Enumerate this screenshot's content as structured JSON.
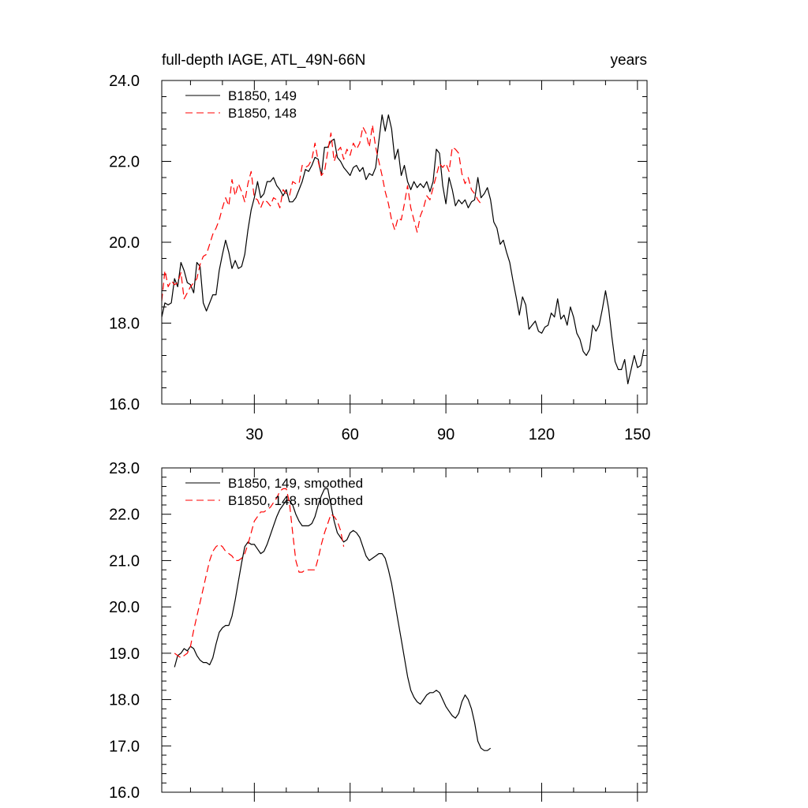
{
  "chart_data": [
    {
      "id": "top",
      "type": "line",
      "title": "full-depth IAGE, ATL_49N-66N",
      "units": "years",
      "xlim": [
        1,
        153
      ],
      "ylim": [
        16,
        24
      ],
      "x_ticks": [
        30,
        60,
        90,
        120,
        150
      ],
      "y_ticks": [
        16,
        18,
        20,
        22,
        24
      ],
      "y_tick_labels": [
        "16.0",
        "18.0",
        "20.0",
        "22.0",
        "24.0"
      ],
      "legend_position": "top-left",
      "series": [
        {
          "name": "B1850, 149",
          "color": "#000000",
          "dash": "solid",
          "x_start": 1,
          "values": [
            18.15,
            18.5,
            18.45,
            18.5,
            19.1,
            18.9,
            19.5,
            19.3,
            19.0,
            18.95,
            18.75,
            19.5,
            19.4,
            18.5,
            18.3,
            18.5,
            18.7,
            18.7,
            19.3,
            19.7,
            20.05,
            19.75,
            19.35,
            19.55,
            19.35,
            19.4,
            19.7,
            20.3,
            20.8,
            21.1,
            21.5,
            21.1,
            21.2,
            21.5,
            21.5,
            21.6,
            21.4,
            21.3,
            21.15,
            21.3,
            21.0,
            21.0,
            21.1,
            21.3,
            21.5,
            21.8,
            21.75,
            21.9,
            22.1,
            22.05,
            21.65,
            22.35,
            22.35,
            22.5,
            22.55,
            22.1,
            22.0,
            21.85,
            21.75,
            21.65,
            21.85,
            21.9,
            21.75,
            21.85,
            21.55,
            21.7,
            21.65,
            21.85,
            22.5,
            23.15,
            22.75,
            23.15,
            22.8,
            22.05,
            22.3,
            21.65,
            21.9,
            21.5,
            21.3,
            21.5,
            21.35,
            21.45,
            21.35,
            21.5,
            21.25,
            21.5,
            22.3,
            22.2,
            21.4,
            20.95,
            21.6,
            21.3,
            20.9,
            21.05,
            20.95,
            21.05,
            20.85,
            21.0,
            21.05,
            21.6,
            21.1,
            21.2,
            21.35,
            21.05,
            20.5,
            20.35,
            19.95,
            20.05,
            19.75,
            19.5,
            19.05,
            18.65,
            18.2,
            18.65,
            18.45,
            17.85,
            17.95,
            18.05,
            17.8,
            17.75,
            17.9,
            17.95,
            18.25,
            18.15,
            18.6,
            18.1,
            18.2,
            17.95,
            18.4,
            18.15,
            17.75,
            17.6,
            17.3,
            17.2,
            17.35,
            17.95,
            17.8,
            17.95,
            18.35,
            18.8,
            18.35,
            17.65,
            17.05,
            16.85,
            16.85,
            17.1,
            16.5,
            16.85,
            17.2,
            16.9,
            16.95,
            17.35
          ]
        },
        {
          "name": "B1850, 148",
          "color": "#ff0000",
          "dash": "dashed",
          "x_start": 1,
          "values": [
            18.55,
            19.3,
            18.9,
            19.05,
            18.95,
            19.0,
            19.25,
            18.6,
            18.75,
            18.9,
            19.0,
            19.1,
            19.45,
            19.65,
            19.7,
            19.95,
            20.2,
            20.35,
            20.55,
            20.85,
            21.1,
            20.9,
            21.55,
            21.15,
            21.45,
            21.25,
            21.0,
            21.45,
            21.75,
            21.1,
            21.05,
            20.85,
            21.05,
            21.0,
            20.9,
            21.1,
            21.05,
            20.85,
            21.3,
            21.2,
            21.15,
            21.5,
            21.45,
            21.45,
            21.9,
            21.85,
            21.9,
            22.05,
            22.45,
            22.0,
            21.65,
            21.75,
            22.25,
            22.7,
            22.0,
            22.25,
            22.35,
            22.05,
            22.3,
            22.15,
            22.45,
            22.3,
            22.45,
            22.85,
            22.7,
            22.35,
            22.9,
            22.35,
            22.0,
            21.65,
            21.25,
            20.95,
            20.55,
            20.3,
            20.6,
            20.55,
            20.95,
            21.4,
            20.85,
            20.55,
            20.25,
            20.65,
            20.85,
            21.15,
            21.05,
            21.35,
            21.65,
            21.95,
            21.85,
            21.95,
            21.75,
            22.35,
            22.3,
            22.2,
            21.7,
            21.45,
            21.6,
            21.3,
            21.2,
            21.05,
            20.95
          ]
        }
      ]
    },
    {
      "id": "bottom",
      "type": "line",
      "title": "",
      "xlim": [
        1,
        153
      ],
      "ylim": [
        16,
        23
      ],
      "x_ticks": [
        30,
        60,
        90,
        120,
        150
      ],
      "y_ticks": [
        16,
        17,
        18,
        19,
        20,
        21,
        22,
        23
      ],
      "y_tick_labels": [
        "16.0",
        "17.0",
        "18.0",
        "19.0",
        "20.0",
        "21.0",
        "22.0",
        "23.0"
      ],
      "legend_position": "top-left",
      "series": [
        {
          "name": "B1850, 149, smoothed",
          "color": "#000000",
          "dash": "solid",
          "x_start": 5,
          "values": [
            18.7,
            18.95,
            19.0,
            19.1,
            19.05,
            19.15,
            19.1,
            18.95,
            18.85,
            18.8,
            18.8,
            18.75,
            18.9,
            19.2,
            19.45,
            19.55,
            19.6,
            19.6,
            19.8,
            20.15,
            20.55,
            20.95,
            21.3,
            21.4,
            21.35,
            21.35,
            21.25,
            21.15,
            21.2,
            21.35,
            21.55,
            21.75,
            21.95,
            22.1,
            22.2,
            22.3,
            22.3,
            22.2,
            22.0,
            21.85,
            21.75,
            21.75,
            21.75,
            21.8,
            21.95,
            22.2,
            22.4,
            22.55,
            22.55,
            22.2,
            21.85,
            21.6,
            21.5,
            21.4,
            21.45,
            21.6,
            21.65,
            21.6,
            21.5,
            21.3,
            21.1,
            21.0,
            21.05,
            21.1,
            21.15,
            21.15,
            21.05,
            20.8,
            20.5,
            20.1,
            19.7,
            19.3,
            18.9,
            18.5,
            18.2,
            18.05,
            17.95,
            17.9,
            18.0,
            18.1,
            18.15,
            18.15,
            18.2,
            18.15,
            18.0,
            17.85,
            17.75,
            17.65,
            17.6,
            17.7,
            17.95,
            18.1,
            18.0,
            17.8,
            17.5,
            17.1,
            16.95,
            16.9,
            16.9,
            16.95
          ]
        },
        {
          "name": "B1850, 148, smoothed",
          "color": "#ff0000",
          "dash": "dashed",
          "x_start": 5,
          "values": [
            19.0,
            18.95,
            18.9,
            18.95,
            19.0,
            19.15,
            19.5,
            19.8,
            20.1,
            20.4,
            20.7,
            21.0,
            21.2,
            21.3,
            21.35,
            21.3,
            21.2,
            21.15,
            21.1,
            21.0,
            21.0,
            21.05,
            21.15,
            21.35,
            21.6,
            21.85,
            21.95,
            22.05,
            22.05,
            22.1,
            22.15,
            22.25,
            22.35,
            22.5,
            22.55,
            22.55,
            22.25,
            21.6,
            21.0,
            20.75,
            20.75,
            20.8,
            20.8,
            20.8,
            20.8,
            21.05,
            21.35,
            21.6,
            21.8,
            22.0,
            21.95,
            21.85,
            21.65,
            21.3
          ]
        }
      ]
    }
  ]
}
